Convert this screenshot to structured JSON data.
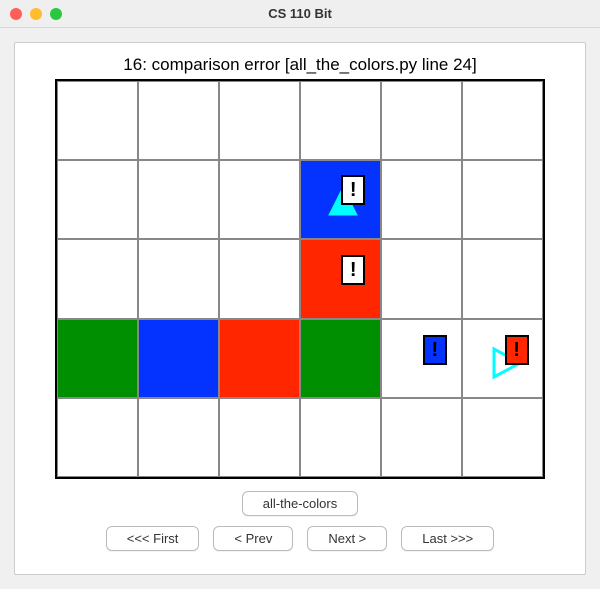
{
  "window": {
    "title": "CS 110 Bit"
  },
  "status": "16: comparison error  [all_the_colors.py line 24]",
  "grid": {
    "cols": 6,
    "rows": 5,
    "border_color": "#000000",
    "cell_border_color": "#888888",
    "cells": [
      {
        "row": 1,
        "col": 3,
        "fill": "#0432ff"
      },
      {
        "row": 2,
        "col": 3,
        "fill": "#ff2600"
      },
      {
        "row": 3,
        "col": 0,
        "fill": "#008f00"
      },
      {
        "row": 3,
        "col": 1,
        "fill": "#0432ff"
      },
      {
        "row": 3,
        "col": 2,
        "fill": "#ff2600"
      },
      {
        "row": 3,
        "col": 3,
        "fill": "#008f00"
      }
    ],
    "triangles": [
      {
        "row": 1,
        "col": 3,
        "dir": "up",
        "color": "#00fdff",
        "style": "filled"
      },
      {
        "row": 3,
        "col": 5,
        "dir": "right",
        "color": "#00fdff",
        "style": "outline"
      }
    ],
    "markers": [
      {
        "row": 1,
        "col": 3,
        "bg": "#ffffff",
        "glyph": "!"
      },
      {
        "row": 2,
        "col": 3,
        "bg": "#ffffff",
        "glyph": "!"
      },
      {
        "row": 3,
        "col": 4,
        "bg": "#0432ff",
        "glyph": "!"
      },
      {
        "row": 3,
        "col": 5,
        "bg": "#ff2600",
        "glyph": "!"
      }
    ]
  },
  "buttons": {
    "test_name": "all-the-colors",
    "first": "<<< First",
    "prev": "< Prev",
    "next": "Next >",
    "last": "Last >>>"
  }
}
